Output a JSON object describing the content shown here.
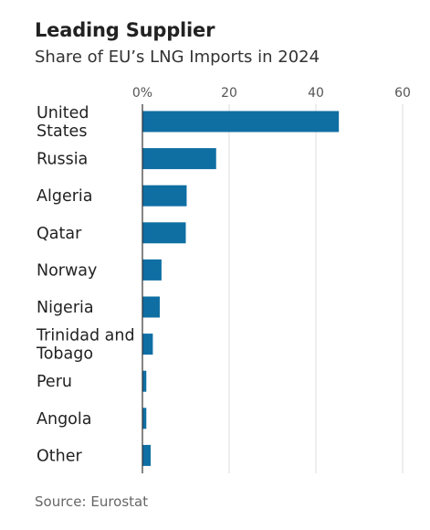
{
  "chart_data": {
    "type": "bar",
    "orientation": "horizontal",
    "title": "Leading Supplier",
    "subtitle": "Share of EU’s LNG Imports in 2024",
    "source": "Source: Eurostat",
    "categories": [
      [
        "United",
        "States"
      ],
      [
        "Russia"
      ],
      [
        "Algeria"
      ],
      [
        "Qatar"
      ],
      [
        "Norway"
      ],
      [
        "Nigeria"
      ],
      [
        "Trinidad and",
        "Tobago"
      ],
      [
        "Peru"
      ],
      [
        "Angola"
      ],
      [
        "Other"
      ]
    ],
    "values": [
      45.3,
      17.0,
      10.2,
      10.0,
      4.4,
      4.0,
      2.4,
      0.9,
      0.9,
      1.9
    ],
    "xlim": [
      0,
      60
    ],
    "xticks": [
      0,
      20,
      40,
      60
    ],
    "xtick_labels": [
      "0%",
      "20",
      "40",
      "60"
    ],
    "bar_color": "#0f6fa3",
    "gridline_color": "#dddddd",
    "axis_color": "#333333"
  }
}
